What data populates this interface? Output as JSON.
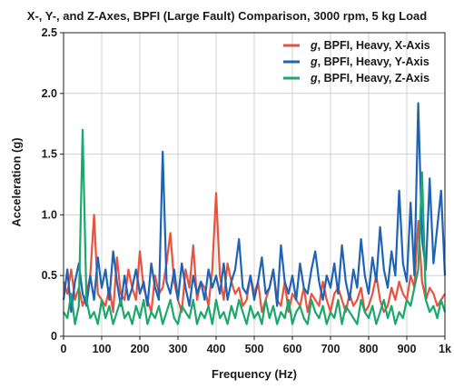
{
  "chart_data": {
    "type": "line",
    "title": "X-, Y-, and Z-Axes, BPFI (Large Fault) Comparison, 3000 rpm, 5 kg Load",
    "xlabel": "Frequency (Hz)",
    "ylabel": "Acceleration (g)",
    "xlim": [
      0,
      1000
    ],
    "ylim": [
      0,
      2.5
    ],
    "xticks": [
      {
        "value": 0,
        "label": "0"
      },
      {
        "value": 100,
        "label": "100"
      },
      {
        "value": 200,
        "label": "200"
      },
      {
        "value": 300,
        "label": "300"
      },
      {
        "value": 400,
        "label": "400"
      },
      {
        "value": 500,
        "label": "500"
      },
      {
        "value": 600,
        "label": "600"
      },
      {
        "value": 700,
        "label": "700"
      },
      {
        "value": 800,
        "label": "800"
      },
      {
        "value": 900,
        "label": "900"
      },
      {
        "value": 1000,
        "label": "1k"
      }
    ],
    "yticks": [
      {
        "value": 0,
        "label": "0"
      },
      {
        "value": 0.5,
        "label": "0.5"
      },
      {
        "value": 1.0,
        "label": "1.0"
      },
      {
        "value": 1.5,
        "label": "1.5"
      },
      {
        "value": 2.0,
        "label": "2.0"
      },
      {
        "value": 2.5,
        "label": "2.5"
      }
    ],
    "grid": true,
    "legend_position": "top-right",
    "series": [
      {
        "name": "g, BPFI, Heavy, X-Axis",
        "legend_italic": "g",
        "legend_rest": ", BPFI, Heavy, X-Axis",
        "color": "#e8533f",
        "x": [
          0,
          10,
          20,
          30,
          40,
          50,
          60,
          70,
          80,
          90,
          100,
          110,
          120,
          130,
          140,
          150,
          160,
          170,
          180,
          190,
          200,
          210,
          220,
          230,
          240,
          250,
          260,
          270,
          280,
          290,
          300,
          310,
          320,
          330,
          340,
          350,
          360,
          370,
          380,
          390,
          400,
          410,
          420,
          430,
          440,
          450,
          460,
          470,
          480,
          490,
          500,
          510,
          520,
          530,
          540,
          550,
          560,
          570,
          580,
          590,
          600,
          610,
          620,
          630,
          640,
          650,
          660,
          670,
          680,
          690,
          700,
          710,
          720,
          730,
          740,
          750,
          760,
          770,
          780,
          790,
          800,
          810,
          820,
          830,
          840,
          850,
          860,
          870,
          880,
          890,
          900,
          910,
          920,
          930,
          940,
          950,
          960,
          970,
          980,
          990,
          1000
        ],
        "y": [
          0.45,
          0.35,
          0.55,
          0.3,
          0.4,
          0.25,
          0.35,
          0.5,
          1.0,
          0.35,
          0.3,
          0.25,
          0.4,
          0.2,
          0.65,
          0.35,
          0.3,
          0.55,
          0.4,
          0.3,
          0.7,
          0.4,
          0.3,
          0.2,
          0.5,
          0.35,
          0.4,
          0.6,
          0.85,
          0.45,
          0.3,
          0.2,
          0.55,
          0.4,
          0.75,
          0.3,
          0.45,
          0.4,
          0.25,
          0.55,
          1.18,
          0.5,
          0.3,
          0.6,
          0.45,
          0.35,
          0.4,
          0.25,
          0.3,
          0.5,
          0.35,
          0.45,
          0.2,
          0.3,
          0.4,
          0.55,
          0.3,
          0.25,
          0.45,
          0.2,
          0.35,
          0.3,
          0.25,
          0.4,
          0.2,
          0.35,
          0.3,
          0.25,
          0.45,
          0.3,
          0.2,
          0.35,
          0.4,
          0.3,
          0.2,
          0.35,
          0.25,
          0.3,
          0.4,
          0.2,
          0.25,
          0.35,
          0.5,
          0.3,
          0.2,
          0.25,
          0.4,
          0.3,
          0.45,
          0.35,
          0.3,
          0.5,
          0.4,
          0.95,
          0.45,
          0.3,
          0.4,
          0.35,
          0.25,
          0.3,
          0.35
        ]
      },
      {
        "name": "g, BPFI, Heavy, Y-Axis",
        "legend_italic": "g",
        "legend_rest": ", BPFI, Heavy, Y-Axis",
        "color": "#1f63b5",
        "x": [
          0,
          10,
          20,
          30,
          40,
          50,
          60,
          70,
          80,
          90,
          100,
          110,
          120,
          130,
          140,
          150,
          160,
          170,
          180,
          190,
          200,
          210,
          220,
          230,
          240,
          250,
          260,
          270,
          280,
          290,
          300,
          310,
          320,
          330,
          340,
          350,
          360,
          370,
          380,
          390,
          400,
          410,
          420,
          430,
          440,
          450,
          460,
          470,
          480,
          490,
          500,
          510,
          520,
          530,
          540,
          550,
          560,
          570,
          580,
          590,
          600,
          610,
          620,
          630,
          640,
          650,
          660,
          670,
          680,
          690,
          700,
          710,
          720,
          730,
          740,
          750,
          760,
          770,
          780,
          790,
          800,
          810,
          820,
          830,
          840,
          850,
          860,
          870,
          880,
          890,
          900,
          910,
          920,
          930,
          940,
          950,
          960,
          970,
          980,
          990,
          1000
        ],
        "y": [
          0.3,
          0.55,
          0.2,
          0.45,
          0.6,
          0.35,
          0.25,
          0.5,
          0.3,
          0.65,
          0.4,
          0.55,
          0.3,
          0.7,
          0.45,
          0.25,
          0.5,
          0.3,
          0.4,
          0.55,
          0.35,
          0.45,
          0.25,
          0.6,
          0.4,
          0.3,
          1.52,
          0.45,
          0.35,
          0.55,
          0.3,
          0.6,
          0.4,
          0.25,
          0.5,
          0.35,
          0.45,
          0.3,
          0.55,
          0.4,
          0.5,
          0.35,
          0.6,
          0.3,
          0.45,
          0.55,
          0.8,
          0.4,
          0.35,
          0.5,
          0.3,
          0.45,
          0.65,
          0.35,
          0.4,
          0.55,
          0.25,
          0.75,
          0.45,
          0.35,
          0.5,
          0.3,
          0.6,
          0.4,
          0.35,
          0.55,
          0.7,
          0.45,
          0.3,
          0.5,
          0.4,
          0.6,
          0.35,
          0.75,
          0.45,
          0.3,
          0.55,
          0.4,
          0.8,
          0.5,
          0.35,
          0.65,
          0.45,
          0.9,
          0.55,
          0.4,
          0.7,
          0.5,
          1.2,
          0.6,
          0.45,
          1.1,
          0.5,
          1.92,
          0.8,
          0.55,
          1.3,
          0.6,
          0.9,
          1.2,
          0.5
        ]
      },
      {
        "name": "g, BPFI, Heavy, Z-Axis",
        "legend_italic": "g",
        "legend_rest": ", BPFI, Heavy, Z-Axis",
        "color": "#1aa86b",
        "x": [
          0,
          10,
          20,
          30,
          40,
          50,
          60,
          70,
          80,
          90,
          100,
          110,
          120,
          130,
          140,
          150,
          160,
          170,
          180,
          190,
          200,
          210,
          220,
          230,
          240,
          250,
          260,
          270,
          280,
          290,
          300,
          310,
          320,
          330,
          340,
          350,
          360,
          370,
          380,
          390,
          400,
          410,
          420,
          430,
          440,
          450,
          460,
          470,
          480,
          490,
          500,
          510,
          520,
          530,
          540,
          550,
          560,
          570,
          580,
          590,
          600,
          610,
          620,
          630,
          640,
          650,
          660,
          670,
          680,
          690,
          700,
          710,
          720,
          730,
          740,
          750,
          760,
          770,
          780,
          790,
          800,
          810,
          820,
          830,
          840,
          850,
          860,
          870,
          880,
          890,
          900,
          910,
          920,
          930,
          940,
          950,
          960,
          970,
          980,
          990,
          1000
        ],
        "y": [
          0.2,
          0.15,
          0.35,
          0.1,
          0.25,
          1.7,
          0.3,
          0.15,
          0.2,
          0.1,
          0.3,
          0.15,
          0.25,
          0.1,
          0.2,
          0.3,
          0.15,
          0.2,
          0.1,
          0.25,
          0.15,
          0.3,
          0.1,
          0.2,
          0.15,
          0.25,
          0.1,
          0.2,
          0.3,
          0.15,
          0.1,
          0.25,
          0.2,
          0.15,
          0.3,
          0.1,
          0.2,
          0.15,
          0.25,
          0.1,
          0.3,
          0.15,
          0.2,
          0.1,
          0.25,
          0.15,
          0.3,
          0.2,
          0.1,
          0.25,
          0.15,
          0.2,
          0.1,
          0.3,
          0.15,
          0.25,
          0.1,
          0.2,
          0.15,
          0.3,
          0.1,
          0.2,
          0.25,
          0.15,
          0.1,
          0.3,
          0.2,
          0.15,
          0.25,
          0.1,
          0.2,
          0.15,
          0.3,
          0.1,
          0.25,
          0.2,
          0.15,
          0.1,
          0.3,
          0.2,
          0.15,
          0.25,
          0.1,
          0.2,
          0.3,
          0.15,
          0.25,
          0.1,
          0.2,
          0.15,
          0.3,
          0.25,
          0.4,
          0.55,
          1.35,
          0.3,
          0.2,
          0.25,
          0.15,
          0.3,
          0.2
        ]
      }
    ]
  }
}
